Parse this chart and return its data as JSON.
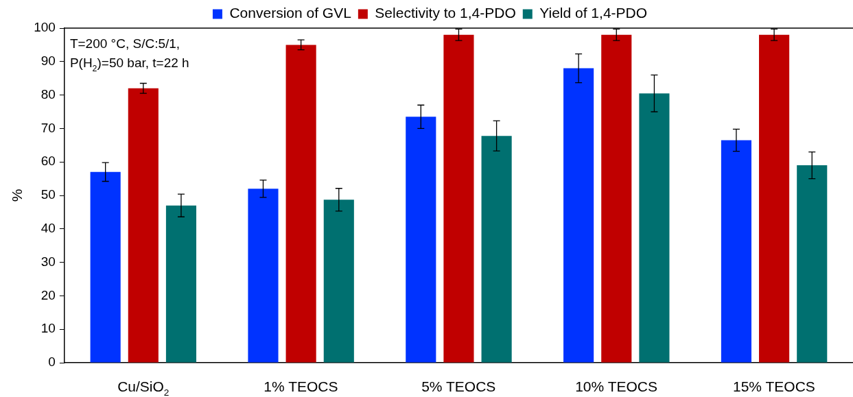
{
  "chart_data": {
    "type": "bar",
    "ylabel": "%",
    "categories": [
      "Cu/SiO$_{2}$",
      "1% TEOCS",
      "5% TEOCS",
      "10% TEOCS",
      "15% TEOCS"
    ],
    "series": [
      {
        "name": "Conversion of GVL",
        "color": "#0033ff",
        "values": [
          57,
          52,
          73.5,
          88,
          66.5
        ],
        "errors": [
          2.8,
          2.6,
          3.5,
          4.3,
          3.3
        ]
      },
      {
        "name": "Selectivity to 1,4-PDO",
        "color": "#c00000",
        "values": [
          82,
          95,
          98,
          98,
          98
        ],
        "errors": [
          1.5,
          1.5,
          1.7,
          1.7,
          1.7
        ]
      },
      {
        "name": "Yield of 1,4-PDO",
        "color": "#007070",
        "values": [
          47,
          48.7,
          67.8,
          80.5,
          59
        ],
        "errors": [
          3.4,
          3.4,
          4.5,
          5.5,
          4
        ]
      }
    ],
    "ylim": [
      0,
      100
    ],
    "yticks": [
      0,
      10,
      20,
      30,
      40,
      50,
      60,
      70,
      80,
      90,
      100
    ],
    "grid": false,
    "legend": "top",
    "annotations": [
      "T=200 °C, S/C:5/1,",
      "P(H$_{2}$)=50 bar, t=22 h"
    ]
  }
}
